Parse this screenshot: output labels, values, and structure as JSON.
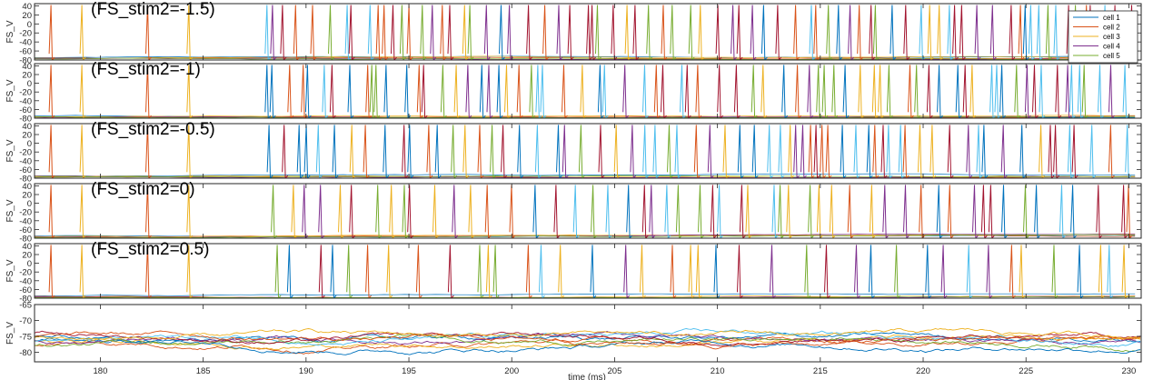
{
  "chart_data": {
    "type": "line",
    "x_range": [
      176.8,
      230.6
    ],
    "xlabel": "time (ms)",
    "x_ticks": [
      180,
      185,
      190,
      195,
      200,
      205,
      210,
      215,
      220,
      225,
      230
    ],
    "legend": {
      "placement": "top-right",
      "entries": [
        "cell 1",
        "cell 2",
        "cell 3",
        "cell 4",
        "cell 5"
      ]
    },
    "series_colors": [
      "#0072BD",
      "#D95319",
      "#EDB120",
      "#7E2F8E",
      "#77AC30",
      "#4DBEEE",
      "#A2142F"
    ],
    "panels": [
      {
        "title": "(FS_stim2=-1.5)",
        "ylabel": "FS_V",
        "ylim": [
          -80,
          45
        ],
        "y_ticks": [
          40,
          20,
          0,
          -20,
          -40,
          -60,
          -80
        ],
        "onset_ms": 188.1,
        "mean_isi_ms": 0.55,
        "pre_onset_spikes": [
          {
            "t": 177.6,
            "c": 1
          },
          {
            "t": 179.1,
            "c": 2
          },
          {
            "t": 182.3,
            "c": 1
          },
          {
            "t": 184.3,
            "c": 2
          }
        ]
      },
      {
        "title": "(FS_stim2=-1)",
        "ylabel": "FS_V",
        "ylim": [
          -80,
          45
        ],
        "y_ticks": [
          40,
          20,
          0,
          -20,
          -40,
          -60,
          -80
        ],
        "onset_ms": 188.1,
        "mean_isi_ms": 0.62,
        "pre_onset_spikes": [
          {
            "t": 177.6,
            "c": 1
          },
          {
            "t": 179.1,
            "c": 2
          },
          {
            "t": 182.3,
            "c": 1
          },
          {
            "t": 184.3,
            "c": 2
          }
        ]
      },
      {
        "title": "(FS_stim2=-0.5)",
        "ylabel": "FS_V",
        "ylim": [
          -80,
          45
        ],
        "y_ticks": [
          40,
          20,
          0,
          -20,
          -40,
          -60,
          -80
        ],
        "onset_ms": 188.2,
        "mean_isi_ms": 0.62,
        "pre_onset_spikes": [
          {
            "t": 177.6,
            "c": 1
          },
          {
            "t": 179.1,
            "c": 2
          },
          {
            "t": 182.3,
            "c": 1
          },
          {
            "t": 184.3,
            "c": 2
          }
        ]
      },
      {
        "title": "(FS_stim2=0)",
        "ylabel": "FS_V",
        "ylim": [
          -80,
          45
        ],
        "y_ticks": [
          40,
          20,
          0,
          -20,
          -40,
          -60,
          -80
        ],
        "onset_ms": 188.4,
        "mean_isi_ms": 0.78,
        "pre_onset_spikes": [
          {
            "t": 177.6,
            "c": 1
          },
          {
            "t": 179.1,
            "c": 2
          },
          {
            "t": 182.3,
            "c": 1
          },
          {
            "t": 184.3,
            "c": 2
          }
        ]
      },
      {
        "title": "(FS_stim2=0.5)",
        "ylabel": "FS_V",
        "ylim": [
          -80,
          45
        ],
        "y_ticks": [
          40,
          20,
          0,
          -20,
          -40,
          -60,
          -80
        ],
        "onset_ms": 188.6,
        "mean_isi_ms": 1.0,
        "pre_onset_spikes": [
          {
            "t": 177.6,
            "c": 1
          },
          {
            "t": 179.1,
            "c": 2
          },
          {
            "t": 182.3,
            "c": 1
          },
          {
            "t": 184.3,
            "c": 2
          }
        ]
      },
      {
        "title": "",
        "ylabel": "FS_V",
        "ylim": [
          -83,
          -65
        ],
        "y_ticks": [
          -65,
          -70,
          -75,
          -80
        ],
        "baseline_mv": -76,
        "trace_count": 10
      }
    ]
  }
}
